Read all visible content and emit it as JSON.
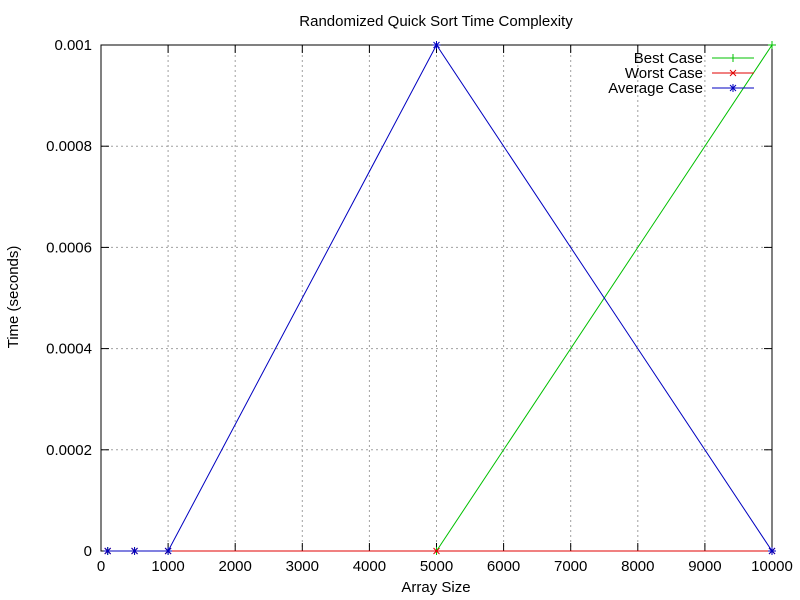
{
  "chart_data": {
    "type": "line",
    "title": "Randomized Quick Sort Time Complexity",
    "xlabel": "Array Size",
    "ylabel": "Time (seconds)",
    "xlim": [
      0,
      10000
    ],
    "ylim": [
      0,
      0.001
    ],
    "xticks": [
      0,
      1000,
      2000,
      3000,
      4000,
      5000,
      6000,
      7000,
      8000,
      9000,
      10000
    ],
    "xtick_labels": [
      "0",
      "1000",
      "2000",
      "3000",
      "4000",
      "5000",
      "6000",
      "7000",
      "8000",
      "9000",
      "10000"
    ],
    "yticks": [
      0,
      0.0002,
      0.0004,
      0.0006,
      0.0008,
      0.001
    ],
    "ytick_labels": [
      "0",
      "0.0002",
      "0.0004",
      "0.0006",
      "0.0008",
      "0.001"
    ],
    "grid": true,
    "legend_position": "top-right",
    "series": [
      {
        "name": "Best Case",
        "color": "#00c000",
        "marker": "plus",
        "x": [
          100,
          500,
          1000,
          5000,
          10000
        ],
        "y": [
          0,
          0,
          0,
          0,
          0.001
        ]
      },
      {
        "name": "Worst Case",
        "color": "#e00000",
        "marker": "cross",
        "x": [
          100,
          500,
          1000,
          5000,
          10000
        ],
        "y": [
          0,
          0,
          0,
          0,
          0
        ]
      },
      {
        "name": "Average Case",
        "color": "#0000c0",
        "marker": "star",
        "x": [
          100,
          500,
          1000,
          5000,
          10000
        ],
        "y": [
          0,
          0,
          0,
          0.001,
          0
        ]
      }
    ]
  }
}
